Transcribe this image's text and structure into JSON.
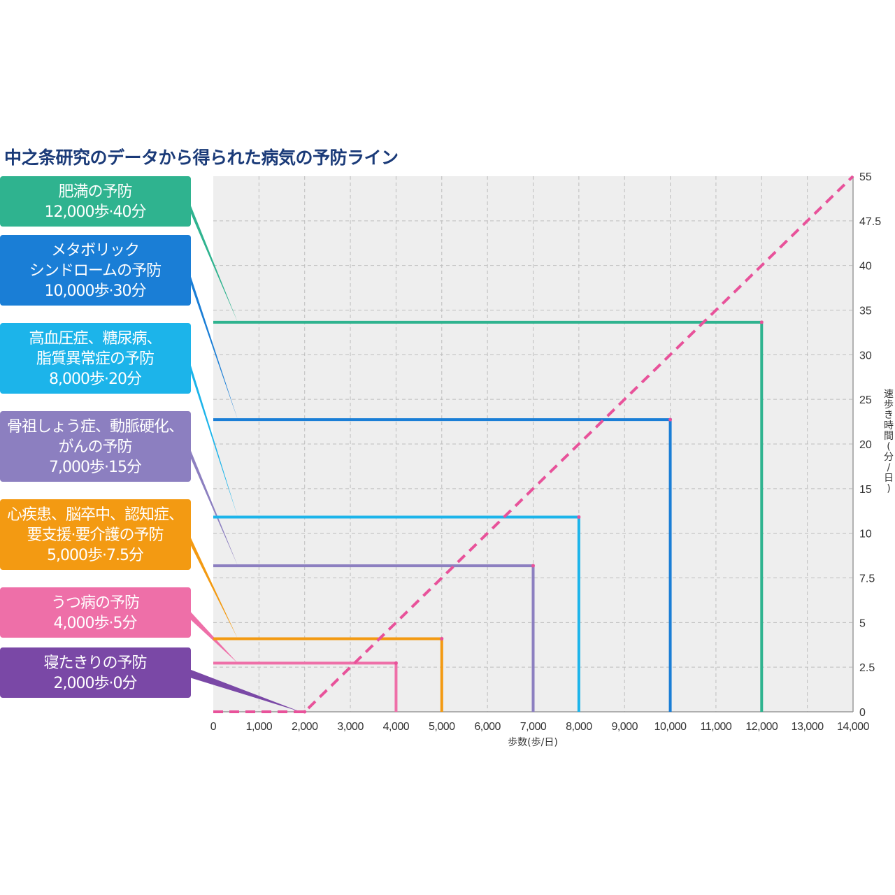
{
  "title": "中之条研究のデータから得られた病気の予防ライン",
  "chart_data": {
    "type": "line",
    "title": "中之条研究のデータから得られた病気の予防ライン",
    "xlabel": "歩数(歩/日)",
    "ylabel": "速歩き時間(分/日)",
    "xlim": [
      0,
      14000
    ],
    "ylim": [
      0,
      55
    ],
    "x_ticks": [
      "0",
      "1,000",
      "2,000",
      "3,000",
      "4,000",
      "5,000",
      "6,000",
      "7,000",
      "8,000",
      "9,000",
      "10,000",
      "11,000",
      "12,000",
      "13,000",
      "14,000"
    ],
    "y_ticks": [
      "55",
      "47.5",
      "40",
      "35",
      "30",
      "25",
      "20",
      "15",
      "10",
      "7.5",
      "5",
      "2.5",
      "0"
    ],
    "grid": true,
    "trend_line": {
      "points": [
        [
          0,
          0
        ],
        [
          2000,
          0
        ],
        [
          14000,
          55
        ]
      ],
      "color": "#e8529a",
      "style": "dashed"
    },
    "series": [
      {
        "lines": [
          "肥満の予防",
          "12,000歩·40分"
        ],
        "steps": 12000,
        "minutes": 40,
        "color": "#2fb38f"
      },
      {
        "lines": [
          "メタボリック",
          "シンドロームの予防",
          "10,000歩·30分"
        ],
        "steps": 10000,
        "minutes": 30,
        "color": "#1a7ed6"
      },
      {
        "lines": [
          "高血圧症、糖尿病、",
          "脂質異常症の予防",
          "8,000歩·20分"
        ],
        "steps": 8000,
        "minutes": 20,
        "color": "#1cb4ea"
      },
      {
        "lines": [
          "骨祖しょう症、動脈硬化、",
          "がんの予防",
          "7,000歩·15分"
        ],
        "steps": 7000,
        "minutes": 15,
        "color": "#8c7fc0"
      },
      {
        "lines": [
          "心疾患、脳卒中、認知症、",
          "要支援·要介護の予防",
          "5,000歩·7.5分"
        ],
        "steps": 5000,
        "minutes": 7.5,
        "color": "#f39a12"
      },
      {
        "lines": [
          "うつ病の予防",
          "4,000歩·5分"
        ],
        "steps": 4000,
        "minutes": 5,
        "color": "#ee6fa8"
      },
      {
        "lines": [
          "寝たきりの予防",
          "2,000歩·0分"
        ],
        "steps": 2000,
        "minutes": 0,
        "color": "#7a48a6"
      }
    ]
  }
}
